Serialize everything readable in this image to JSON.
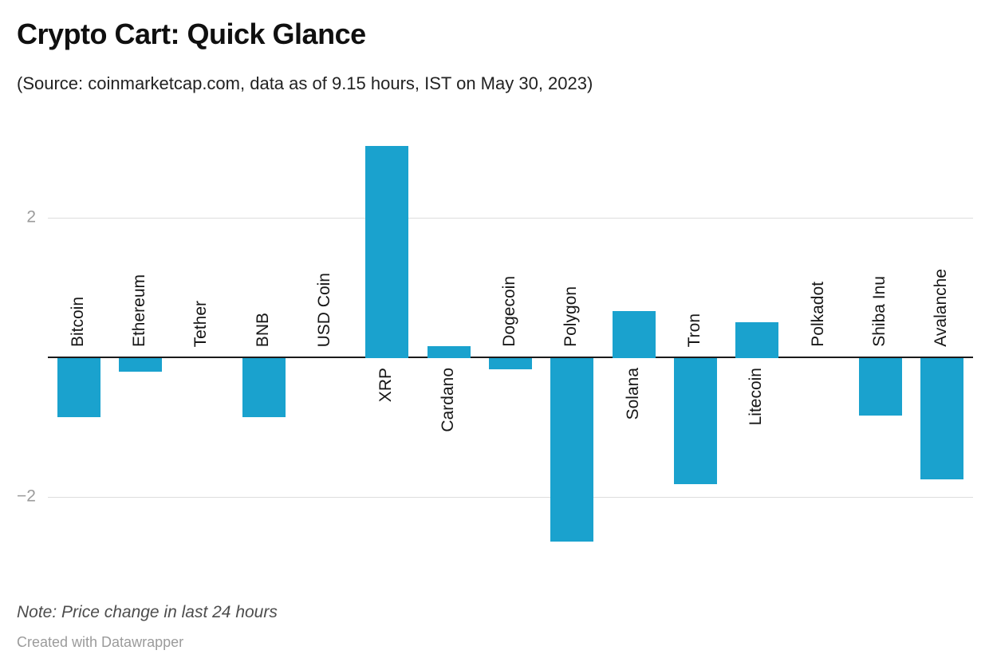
{
  "header": {
    "title": "Crypto Cart: Quick Glance",
    "subtitle": "(Source: coinmarketcap.com, data as of 9.15 hours, IST on May 30, 2023)"
  },
  "chart_data": {
    "type": "bar",
    "title": "Crypto Cart: Quick Glance",
    "subtitle": "(Source: coinmarketcap.com, data as of 9.15 hours, IST on May 30, 2023)",
    "note": "Note: Price change in last 24 hours",
    "categories": [
      "Bitcoin",
      "Ethereum",
      "Tether",
      "BNB",
      "USD Coin",
      "XRP",
      "Cardano",
      "Dogecoin",
      "Polygon",
      "Solana",
      "Tron",
      "Litecoin",
      "Polkadot",
      "Shiba Inu",
      "Avalanche"
    ],
    "values": [
      -0.85,
      -0.2,
      0,
      -0.85,
      0,
      3.05,
      0.17,
      -0.16,
      -2.63,
      0.68,
      -1.81,
      0.52,
      0,
      -0.83,
      -1.74
    ],
    "baseline": 0,
    "ylim": [
      -2.8,
      3.4
    ],
    "yticks": [
      {
        "label": "2",
        "value": 2
      },
      {
        "label": "−2",
        "value": -2
      }
    ],
    "grid": "horizontal",
    "legend": "none",
    "label_rotation_degrees": 90,
    "colors": {
      "bar": "#1aa2ce",
      "gridline": "#dddddd",
      "axis_line": "#1a1a1a",
      "tick_label": "#9b9b9b",
      "category_label": "#161616",
      "background": "#ffffff"
    }
  },
  "footer": {
    "note": "Note: Price change in last 24 hours",
    "credit": "Created with Datawrapper"
  }
}
